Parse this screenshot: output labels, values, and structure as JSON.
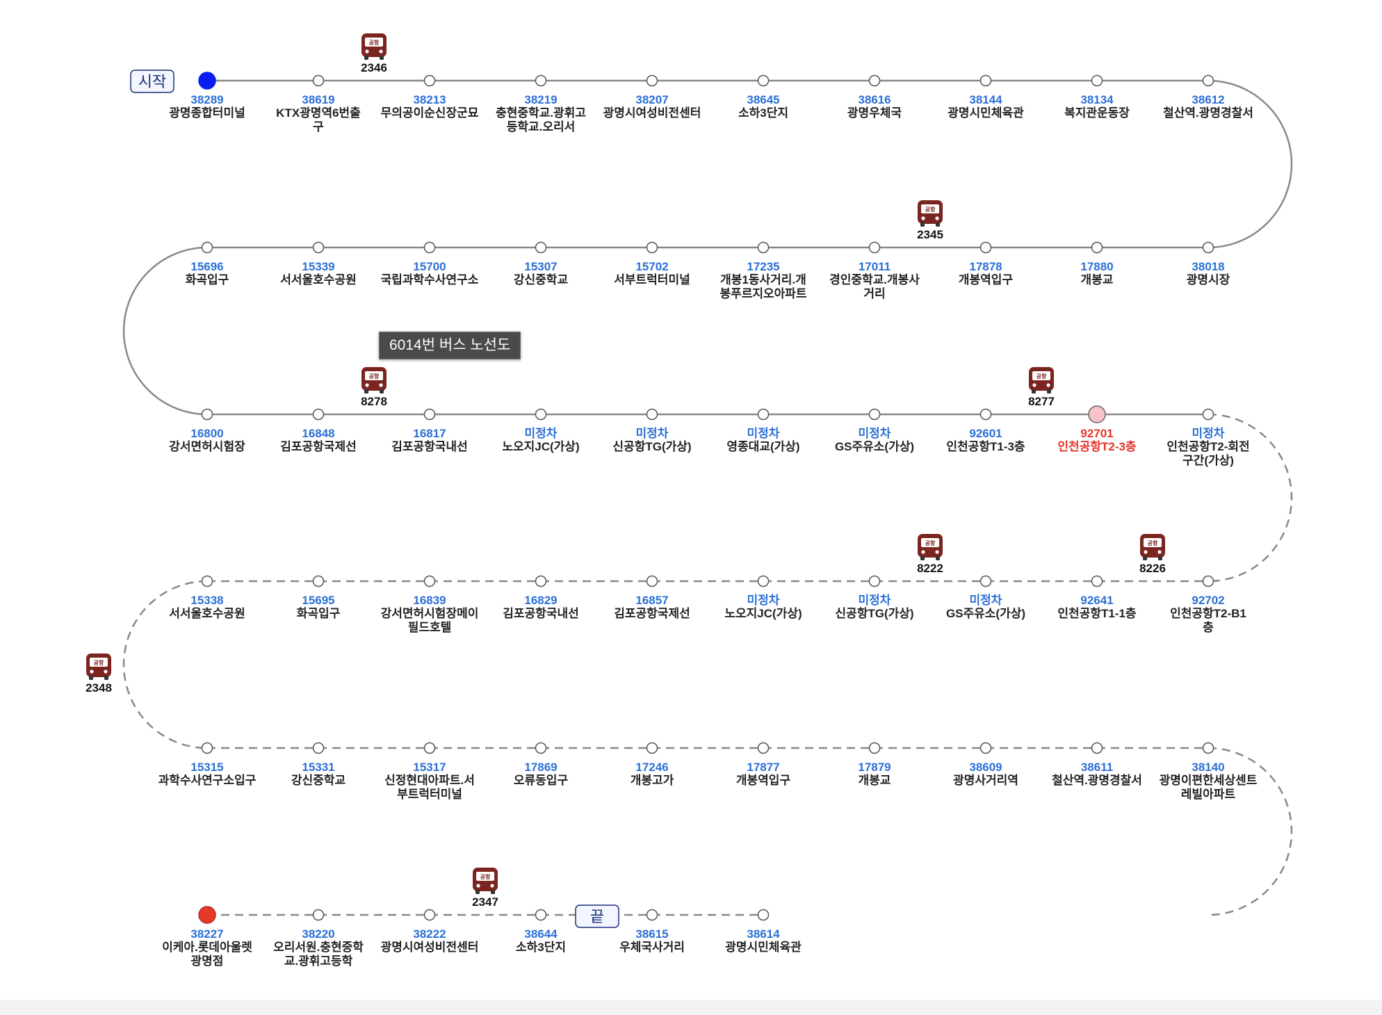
{
  "tooltip": "6014번 버스 노선도",
  "start_label": "시작",
  "end_label": "끝",
  "bus_icon_text": "공항",
  "colors": {
    "line": "#888888",
    "stop_id": "#2a6fd6",
    "current": "#e5342a",
    "start_dot": "#0a1ef0",
    "end_dot": "#e53a2a",
    "current_dot": "#f7c3c9",
    "bus": "#7b2420"
  },
  "rows": [
    {
      "dashed": false,
      "stops": [
        {
          "id": "38289",
          "name": "광명종합터미널"
        },
        {
          "id": "38619",
          "name": "KTX광명역6번출구"
        },
        {
          "id": "38213",
          "name": "무의공이순신장군묘"
        },
        {
          "id": "38219",
          "name": "충현중학교.광휘고등학교.오리서"
        },
        {
          "id": "38207",
          "name": "광명시여성비전센터"
        },
        {
          "id": "38645",
          "name": "소하3단지"
        },
        {
          "id": "38616",
          "name": "광명우체국"
        },
        {
          "id": "38144",
          "name": "광명시민체육관"
        },
        {
          "id": "38134",
          "name": "복지관운동장"
        },
        {
          "id": "38612",
          "name": "철산역.광명경찰서"
        }
      ]
    },
    {
      "dashed": false,
      "stops": [
        {
          "id": "15696",
          "name": "화곡입구"
        },
        {
          "id": "15339",
          "name": "서서울호수공원"
        },
        {
          "id": "15700",
          "name": "국립과학수사연구소"
        },
        {
          "id": "15307",
          "name": "강신중학교"
        },
        {
          "id": "15702",
          "name": "서부트럭터미널"
        },
        {
          "id": "17235",
          "name": "개봉1동사거리.개봉푸르지오아파트"
        },
        {
          "id": "17011",
          "name": "경인중학교.개봉사거리"
        },
        {
          "id": "17878",
          "name": "개봉역입구"
        },
        {
          "id": "17880",
          "name": "개봉교"
        },
        {
          "id": "38018",
          "name": "광명시장"
        }
      ]
    },
    {
      "dashed": false,
      "stops": [
        {
          "id": "16800",
          "name": "강서면허시험장"
        },
        {
          "id": "16848",
          "name": "김포공항국제선"
        },
        {
          "id": "16817",
          "name": "김포공항국내선"
        },
        {
          "id": "미정차",
          "name": "노오지JC(가상)"
        },
        {
          "id": "미정차",
          "name": "신공항TG(가상)"
        },
        {
          "id": "미정차",
          "name": "영종대교(가상)"
        },
        {
          "id": "미정차",
          "name": "GS주유소(가상)"
        },
        {
          "id": "92601",
          "name": "인천공항T1-3층"
        },
        {
          "id": "92701",
          "name": "인천공항T2-3층",
          "current": true
        },
        {
          "id": "미정차",
          "name": "인천공항T2-회전구간(가상)"
        }
      ]
    },
    {
      "dashed": true,
      "stops": [
        {
          "id": "15338",
          "name": "서서울호수공원"
        },
        {
          "id": "15695",
          "name": "화곡입구"
        },
        {
          "id": "16839",
          "name": "강서면허시험장메이필드호텔"
        },
        {
          "id": "16829",
          "name": "김포공항국내선"
        },
        {
          "id": "16857",
          "name": "김포공항국제선"
        },
        {
          "id": "미정차",
          "name": "노오지JC(가상)"
        },
        {
          "id": "미정차",
          "name": "신공항TG(가상)"
        },
        {
          "id": "미정차",
          "name": "GS주유소(가상)"
        },
        {
          "id": "92641",
          "name": "인천공항T1-1층"
        },
        {
          "id": "92702",
          "name": "인천공항T2-B1층"
        }
      ]
    },
    {
      "dashed": true,
      "stops": [
        {
          "id": "15315",
          "name": "과학수사연구소입구"
        },
        {
          "id": "15331",
          "name": "강신중학교"
        },
        {
          "id": "15317",
          "name": "신정현대아파트.서부트럭터미널"
        },
        {
          "id": "17869",
          "name": "오류동입구"
        },
        {
          "id": "17246",
          "name": "개봉고가"
        },
        {
          "id": "17877",
          "name": "개봉역입구"
        },
        {
          "id": "17879",
          "name": "개봉교"
        },
        {
          "id": "38609",
          "name": "광명사거리역"
        },
        {
          "id": "38611",
          "name": "철산역.광명경찰서"
        },
        {
          "id": "38140",
          "name": "광명이편한세상센트레빌아파트"
        }
      ]
    },
    {
      "dashed": true,
      "stops": [
        {
          "id": "38227",
          "name": "이케아.롯데아울렛광명점"
        },
        {
          "id": "38220",
          "name": "오리서원.충현중학교.광휘고등학"
        },
        {
          "id": "38222",
          "name": "광명시여성비전센터"
        },
        {
          "id": "38644",
          "name": "소하3단지"
        },
        {
          "id": "38615",
          "name": "우체국사거리"
        },
        {
          "id": "38614",
          "name": "광명시민체육관"
        }
      ]
    }
  ],
  "buses": [
    {
      "number": "2346",
      "row": 0,
      "position": 1.5
    },
    {
      "number": "2345",
      "row": 1,
      "position": 6.5
    },
    {
      "number": "8278",
      "row": 2,
      "position": 1.5
    },
    {
      "number": "8277",
      "row": 2,
      "position": 7.5
    },
    {
      "number": "8222",
      "row": 3,
      "position": 6.5
    },
    {
      "number": "8226",
      "row": 3,
      "position": 8.5
    },
    {
      "number": "2348",
      "turn": "left"
    },
    {
      "number": "2347",
      "row": 5,
      "position": 2.5
    }
  ]
}
